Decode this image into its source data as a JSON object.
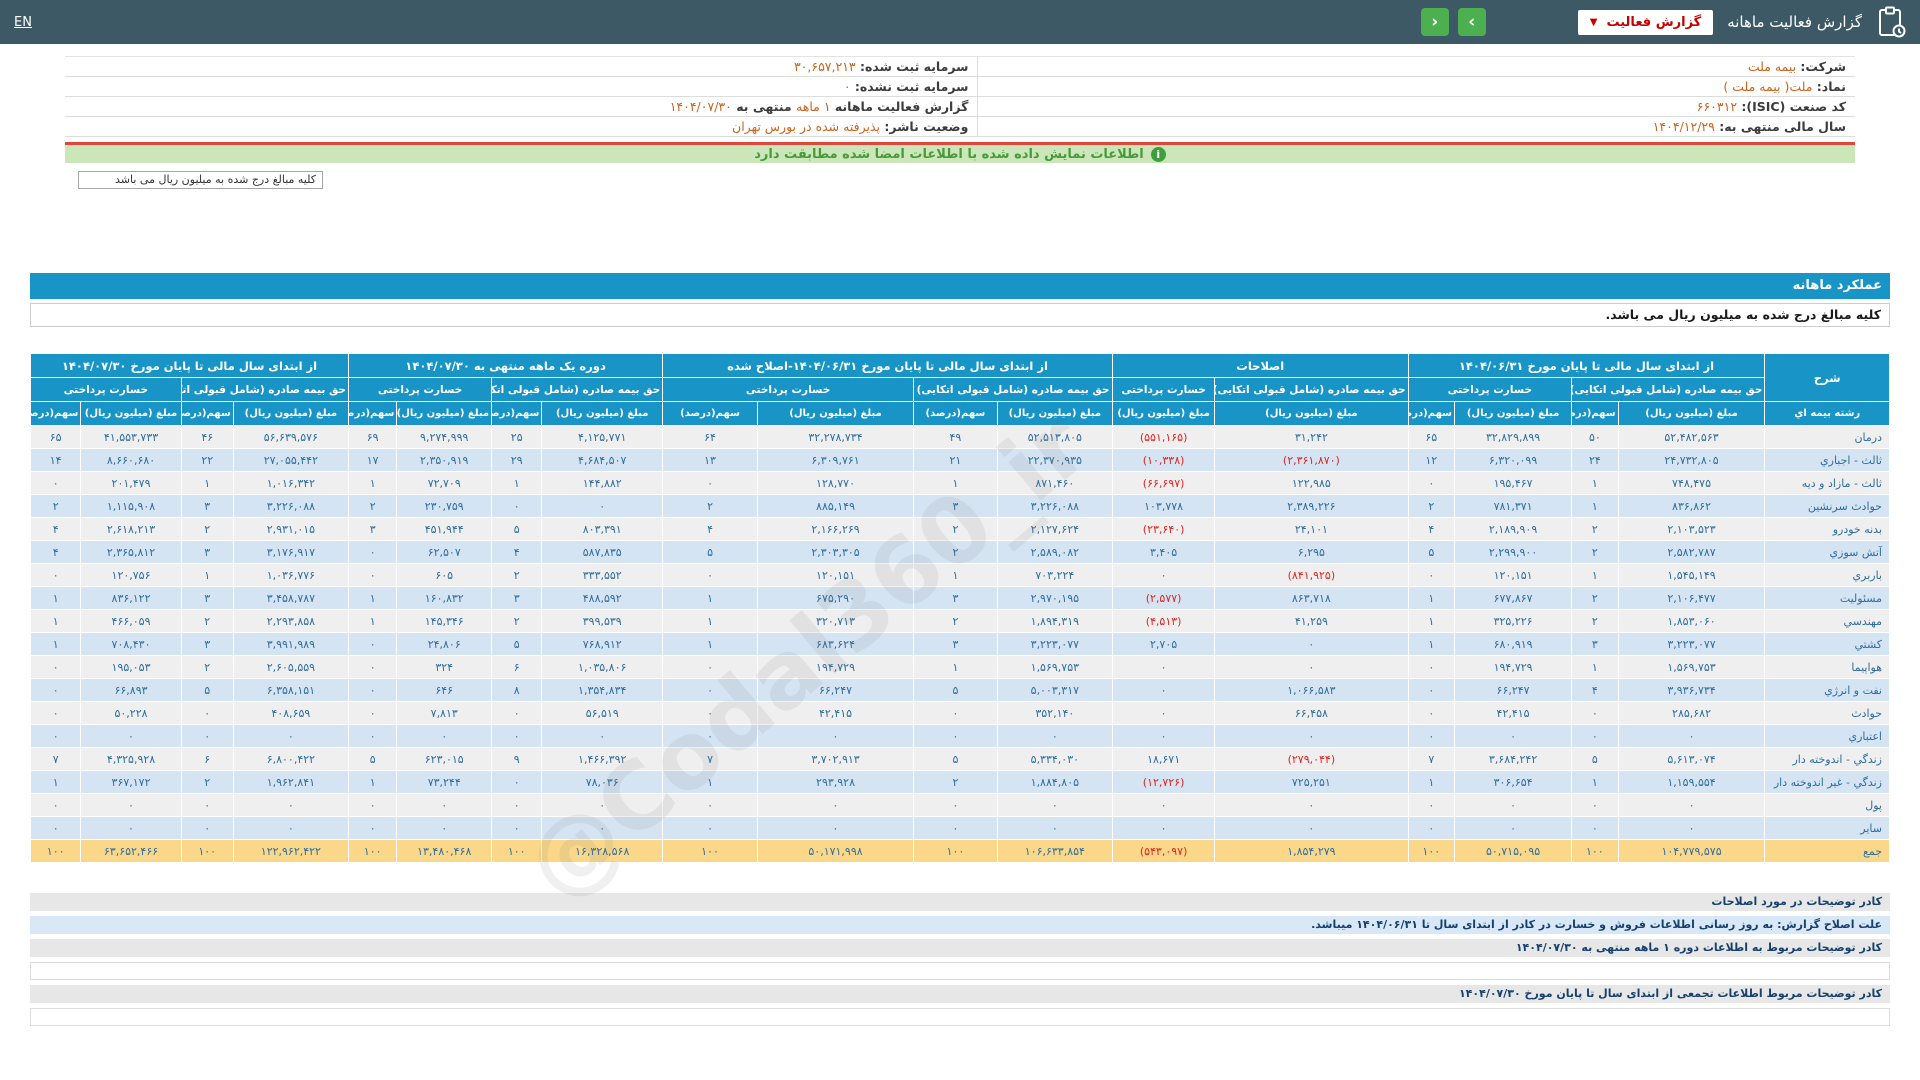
{
  "topbar": {
    "title": "گزارش فعالیت ماهانه",
    "report_type_button": "گزارش فعالیت",
    "caret": "▼",
    "nav_next": "›",
    "nav_prev": "‹",
    "lang": "EN"
  },
  "info": {
    "rows": [
      {
        "right": {
          "label": "شرکت:",
          "value": "بیمه ملت"
        },
        "left": {
          "label": "سرمایه ثبت شده:",
          "value": "۳۰,۶۵۷,۲۱۳"
        }
      },
      {
        "right": {
          "label": "نماد:",
          "value": "ملت( بیمه ملت )"
        },
        "left": {
          "label": "سرمایه ثبت نشده:",
          "value": "۰"
        }
      },
      {
        "right": {
          "label": "کد صنعت (ISIC):",
          "value": "۶۶۰۳۱۲"
        },
        "left": {
          "label": "گزارش فعالیت ماهانه",
          "value": "۱ ماهه",
          "label2": "منتهی به",
          "value2": "۱۴۰۴/۰۷/۳۰"
        }
      },
      {
        "right": {
          "label": "سال مالی منتهی به:",
          "value": "۱۴۰۴/۱۲/۲۹"
        },
        "left": {
          "label": "وضعیت ناشر:",
          "value": "پذیرفته شده در بورس تهران"
        }
      }
    ]
  },
  "green_bar": {
    "text": "اطلاعات نمایش داده شده با اطلاعات امضا شده مطابقت دارد",
    "icon": "i"
  },
  "amounts_box": "کلیه مبالغ درج شده به میلیون ریال می باشد",
  "band_title": "عملکرد ماهانه",
  "amounts_note": "کلیه مبالغ درج شده به میلیون ریال می باشد.",
  "watermark": "@Codal360_ir",
  "table": {
    "col_widths": [
      "6.7%",
      "7.9%",
      "2.5%",
      "6.3%",
      "2.5%",
      "10.4%",
      "5.5%",
      "6.2%",
      "4.5%",
      "8.4%",
      "5.1%",
      "6.5%",
      "2.7%",
      "5.1%",
      "2.6%",
      "6.2%",
      "2.8%",
      "5.4%",
      "2.7%"
    ],
    "header": [
      [
        {
          "t": "شرح",
          "cs": 1,
          "rs": 2,
          "n": "col-group-description"
        },
        {
          "t": "از ابتدای سال مالی تا پایان مورخ ۱۴۰۴/۰۶/۳۱",
          "cs": 4,
          "n": "col-group-ytd-1404-06-31"
        },
        {
          "t": "اصلاحات",
          "cs": 2,
          "n": "col-group-adjustments"
        },
        {
          "t": "از ابتدای سال مالی تا پایان مورخ ۱۴۰۴/۰۶/۳۱-اصلاح شده",
          "cs": 4,
          "n": "col-group-ytd-1404-06-31-adjusted"
        },
        {
          "t": "دوره یک ماهه منتهی به ۱۴۰۴/۰۷/۳۰",
          "cs": 4,
          "n": "col-group-one-month-1404-07-30"
        },
        {
          "t": "از ابتدای سال مالی تا پایان مورخ ۱۴۰۴/۰۷/۳۰",
          "cs": 4,
          "n": "col-group-ytd-1404-07-30"
        }
      ],
      [
        {
          "t": "حق بیمه صادره (شامل قبولی اتکایی)",
          "cs": 2,
          "n": "subcol-premium-issued"
        },
        {
          "t": "خسارت پرداختی",
          "cs": 2,
          "n": "subcol-claims-paid"
        },
        {
          "t": "حق بیمه صادره (شامل قبولی اتکایی)",
          "cs": 1,
          "n": "subcol-premium-issued"
        },
        {
          "t": "خسارت پرداختی",
          "cs": 1,
          "n": "subcol-claims-paid"
        },
        {
          "t": "حق بیمه صادره (شامل قبولی اتکایی)",
          "cs": 2,
          "n": "subcol-premium-issued"
        },
        {
          "t": "خسارت پرداختی",
          "cs": 2,
          "n": "subcol-claims-paid"
        },
        {
          "t": "حق بیمه صادره (شامل قبولی اتکایی)",
          "cs": 2,
          "n": "subcol-premium-issued"
        },
        {
          "t": "خسارت پرداختی",
          "cs": 2,
          "n": "subcol-claims-paid"
        },
        {
          "t": "حق بیمه صادره (شامل قبولی اتکایی)",
          "cs": 2,
          "n": "subcol-premium-issued"
        },
        {
          "t": "خسارت پرداختی",
          "cs": 2,
          "n": "subcol-claims-paid"
        }
      ],
      [
        {
          "t": "رشته بیمه اي",
          "cs": 1,
          "n": "col-insurance-line"
        },
        {
          "t": "مبلغ (میلیون ریال)",
          "cs": 1,
          "n": "col-amount"
        },
        {
          "t": "سهم(درصد)",
          "cs": 1,
          "n": "col-share"
        },
        {
          "t": "مبلغ (میلیون ریال)",
          "cs": 1,
          "n": "col-amount"
        },
        {
          "t": "سهم(درصد)",
          "cs": 1,
          "n": "col-share"
        },
        {
          "t": "مبلغ (میلیون ریال)",
          "cs": 1,
          "n": "col-amount"
        },
        {
          "t": "مبلغ (میلیون ریال)",
          "cs": 1,
          "n": "col-amount"
        },
        {
          "t": "مبلغ (میلیون ریال)",
          "cs": 1,
          "n": "col-amount"
        },
        {
          "t": "سهم(درصد)",
          "cs": 1,
          "n": "col-share"
        },
        {
          "t": "مبلغ (میلیون ریال)",
          "cs": 1,
          "n": "col-amount"
        },
        {
          "t": "سهم(درصد)",
          "cs": 1,
          "n": "col-share"
        },
        {
          "t": "مبلغ (میلیون ریال)",
          "cs": 1,
          "n": "col-amount"
        },
        {
          "t": "سهم(درصد)",
          "cs": 1,
          "n": "col-share"
        },
        {
          "t": "مبلغ (میلیون ریال)",
          "cs": 1,
          "n": "col-amount"
        },
        {
          "t": "سهم(درصد)",
          "cs": 1,
          "n": "col-share"
        },
        {
          "t": "مبلغ (میلیون ریال)",
          "cs": 1,
          "n": "col-amount"
        },
        {
          "t": "سهم(درصد)",
          "cs": 1,
          "n": "col-share"
        },
        {
          "t": "مبلغ (میلیون ریال)",
          "cs": 1,
          "n": "col-amount"
        },
        {
          "t": "سهم(درصد)",
          "cs": 1,
          "n": "col-share"
        }
      ]
    ],
    "rows": [
      {
        "label": "درمان",
        "cells": [
          "۵۲,۴۸۲,۵۶۳",
          "۵۰",
          "۳۲,۸۲۹,۸۹۹",
          "۶۵",
          "۳۱,۲۴۲",
          "(۵۵۱,۱۶۵)",
          "۵۲,۵۱۳,۸۰۵",
          "۴۹",
          "۳۲,۲۷۸,۷۳۴",
          "۶۴",
          "۴,۱۲۵,۷۷۱",
          "۲۵",
          "۹,۲۷۴,۹۹۹",
          "۶۹",
          "۵۶,۶۳۹,۵۷۶",
          "۴۶",
          "۴۱,۵۵۳,۷۳۳",
          "۶۵"
        ]
      },
      {
        "label": "ثالث - اجباري",
        "cells": [
          "۲۴,۷۳۲,۸۰۵",
          "۲۴",
          "۶,۳۲۰,۰۹۹",
          "۱۲",
          "(۲,۳۶۱,۸۷۰)",
          "(۱۰,۳۳۸)",
          "۲۲,۳۷۰,۹۳۵",
          "۲۱",
          "۶,۳۰۹,۷۶۱",
          "۱۳",
          "۴,۶۸۴,۵۰۷",
          "۲۹",
          "۲,۳۵۰,۹۱۹",
          "۱۷",
          "۲۷,۰۵۵,۴۴۲",
          "۲۲",
          "۸,۶۶۰,۶۸۰",
          "۱۴"
        ]
      },
      {
        "label": "ثالث - مازاد و دیه",
        "cells": [
          "۷۴۸,۴۷۵",
          "۱",
          "۱۹۵,۴۶۷",
          "۰",
          "۱۲۲,۹۸۵",
          "(۶۶,۶۹۷)",
          "۸۷۱,۴۶۰",
          "۱",
          "۱۲۸,۷۷۰",
          "۰",
          "۱۴۴,۸۸۲",
          "۱",
          "۷۲,۷۰۹",
          "۱",
          "۱,۰۱۶,۳۴۲",
          "۱",
          "۲۰۱,۴۷۹",
          "۰"
        ]
      },
      {
        "label": "حوادث سرنشین",
        "cells": [
          "۸۳۶,۸۶۲",
          "۱",
          "۷۸۱,۳۷۱",
          "۲",
          "۲,۳۸۹,۲۲۶",
          "۱۰۳,۷۷۸",
          "۳,۲۲۶,۰۸۸",
          "۳",
          "۸۸۵,۱۴۹",
          "۲",
          "۰",
          "۰",
          "۲۳۰,۷۵۹",
          "۲",
          "۳,۲۲۶,۰۸۸",
          "۳",
          "۱,۱۱۵,۹۰۸",
          "۲"
        ]
      },
      {
        "label": "بدنه خودرو",
        "cells": [
          "۲,۱۰۳,۵۲۳",
          "۲",
          "۲,۱۸۹,۹۰۹",
          "۴",
          "۲۴,۱۰۱",
          "(۲۳,۶۴۰)",
          "۲,۱۲۷,۶۲۴",
          "۲",
          "۲,۱۶۶,۲۶۹",
          "۴",
          "۸۰۳,۳۹۱",
          "۵",
          "۴۵۱,۹۴۴",
          "۳",
          "۲,۹۳۱,۰۱۵",
          "۲",
          "۲,۶۱۸,۲۱۳",
          "۴"
        ]
      },
      {
        "label": "آتش سوزي",
        "cells": [
          "۲,۵۸۲,۷۸۷",
          "۲",
          "۲,۲۹۹,۹۰۰",
          "۵",
          "۶,۲۹۵",
          "۳,۴۰۵",
          "۲,۵۸۹,۰۸۲",
          "۲",
          "۲,۳۰۳,۳۰۵",
          "۵",
          "۵۸۷,۸۳۵",
          "۴",
          "۶۲,۵۰۷",
          "۰",
          "۳,۱۷۶,۹۱۷",
          "۳",
          "۲,۳۶۵,۸۱۲",
          "۴"
        ]
      },
      {
        "label": "باربري",
        "cells": [
          "۱,۵۴۵,۱۴۹",
          "۱",
          "۱۲۰,۱۵۱",
          "۰",
          "(۸۴۱,۹۲۵)",
          "۰",
          "۷۰۳,۲۲۴",
          "۱",
          "۱۲۰,۱۵۱",
          "۰",
          "۳۳۳,۵۵۲",
          "۲",
          "۶۰۵",
          "۰",
          "۱,۰۳۶,۷۷۶",
          "۱",
          "۱۲۰,۷۵۶",
          "۰"
        ]
      },
      {
        "label": "مسئولیت",
        "cells": [
          "۲,۱۰۶,۴۷۷",
          "۲",
          "۶۷۷,۸۶۷",
          "۱",
          "۸۶۳,۷۱۸",
          "(۲,۵۷۷)",
          "۲,۹۷۰,۱۹۵",
          "۳",
          "۶۷۵,۲۹۰",
          "۱",
          "۴۸۸,۵۹۲",
          "۳",
          "۱۶۰,۸۳۲",
          "۱",
          "۳,۴۵۸,۷۸۷",
          "۳",
          "۸۳۶,۱۲۲",
          "۱"
        ]
      },
      {
        "label": "مهندسي",
        "cells": [
          "۱,۸۵۳,۰۶۰",
          "۲",
          "۳۲۵,۲۲۶",
          "۱",
          "۴۱,۲۵۹",
          "(۴,۵۱۳)",
          "۱,۸۹۴,۳۱۹",
          "۲",
          "۳۲۰,۷۱۳",
          "۱",
          "۳۹۹,۵۳۹",
          "۲",
          "۱۴۵,۳۴۶",
          "۱",
          "۲,۲۹۳,۸۵۸",
          "۲",
          "۴۶۶,۰۵۹",
          "۱"
        ]
      },
      {
        "label": "کشتي",
        "cells": [
          "۳,۲۲۳,۰۷۷",
          "۳",
          "۶۸۰,۹۱۹",
          "۱",
          "۰",
          "۲,۷۰۵",
          "۳,۲۲۳,۰۷۷",
          "۳",
          "۶۸۳,۶۲۴",
          "۱",
          "۷۶۸,۹۱۲",
          "۵",
          "۲۴,۸۰۶",
          "۰",
          "۳,۹۹۱,۹۸۹",
          "۳",
          "۷۰۸,۴۳۰",
          "۱"
        ]
      },
      {
        "label": "هواپیما",
        "cells": [
          "۱,۵۶۹,۷۵۳",
          "۱",
          "۱۹۴,۷۲۹",
          "۰",
          "۰",
          "۰",
          "۱,۵۶۹,۷۵۳",
          "۱",
          "۱۹۴,۷۲۹",
          "۰",
          "۱,۰۳۵,۸۰۶",
          "۶",
          "۳۲۴",
          "۰",
          "۲,۶۰۵,۵۵۹",
          "۲",
          "۱۹۵,۰۵۳",
          "۰"
        ]
      },
      {
        "label": "نفت و انرژي",
        "cells": [
          "۳,۹۳۶,۷۳۴",
          "۴",
          "۶۶,۲۴۷",
          "۰",
          "۱,۰۶۶,۵۸۳",
          "۰",
          "۵,۰۰۳,۳۱۷",
          "۵",
          "۶۶,۲۴۷",
          "۰",
          "۱,۳۵۴,۸۳۴",
          "۸",
          "۶۴۶",
          "۰",
          "۶,۳۵۸,۱۵۱",
          "۵",
          "۶۶,۸۹۳",
          "۰"
        ]
      },
      {
        "label": "حوادث",
        "cells": [
          "۲۸۵,۶۸۲",
          "۰",
          "۴۲,۴۱۵",
          "۰",
          "۶۶,۴۵۸",
          "۰",
          "۳۵۲,۱۴۰",
          "۰",
          "۴۲,۴۱۵",
          "۰",
          "۵۶,۵۱۹",
          "۰",
          "۷,۸۱۳",
          "۰",
          "۴۰۸,۶۵۹",
          "۰",
          "۵۰,۲۲۸",
          "۰"
        ]
      },
      {
        "label": "اعتباري",
        "cells": [
          "۰",
          "۰",
          "۰",
          "۰",
          "۰",
          "۰",
          "۰",
          "۰",
          "۰",
          "۰",
          "۰",
          "۰",
          "۰",
          "۰",
          "۰",
          "۰",
          "۰",
          "۰"
        ]
      },
      {
        "label": "زندگي - اندوخته دار",
        "cells": [
          "۵,۶۱۳,۰۷۴",
          "۵",
          "۳,۶۸۴,۲۴۲",
          "۷",
          "(۲۷۹,۰۴۴)",
          "۱۸,۶۷۱",
          "۵,۳۳۴,۰۳۰",
          "۵",
          "۳,۷۰۲,۹۱۳",
          "۷",
          "۱,۴۶۶,۳۹۲",
          "۹",
          "۶۲۳,۰۱۵",
          "۵",
          "۶,۸۰۰,۴۲۲",
          "۶",
          "۴,۳۲۵,۹۲۸",
          "۷"
        ]
      },
      {
        "label": "زندگي - غیر اندوخته دار",
        "cells": [
          "۱,۱۵۹,۵۵۴",
          "۱",
          "۳۰۶,۶۵۴",
          "۱",
          "۷۲۵,۲۵۱",
          "(۱۲,۷۲۶)",
          "۱,۸۸۴,۸۰۵",
          "۲",
          "۲۹۳,۹۲۸",
          "۱",
          "۷۸,۰۳۶",
          "۰",
          "۷۳,۲۴۴",
          "۱",
          "۱,۹۶۲,۸۴۱",
          "۲",
          "۳۶۷,۱۷۲",
          "۱"
        ]
      },
      {
        "label": "پول",
        "cells": [
          "۰",
          "۰",
          "۰",
          "۰",
          "۰",
          "۰",
          "۰",
          "۰",
          "۰",
          "۰",
          "۰",
          "۰",
          "۰",
          "۰",
          "۰",
          "۰",
          "۰",
          "۰"
        ]
      },
      {
        "label": "سایر",
        "cells": [
          "۰",
          "۰",
          "۰",
          "۰",
          "۰",
          "۰",
          "۰",
          "۰",
          "۰",
          "۰",
          "۰",
          "۰",
          "۰",
          "۰",
          "۰",
          "۰",
          "۰",
          "۰"
        ]
      },
      {
        "label": "جمع",
        "total": true,
        "cells": [
          "۱۰۴,۷۷۹,۵۷۵",
          "۱۰۰",
          "۵۰,۷۱۵,۰۹۵",
          "۱۰۰",
          "۱,۸۵۴,۲۷۹",
          "(۵۴۳,۰۹۷)",
          "۱۰۶,۶۳۳,۸۵۴",
          "۱۰۰",
          "۵۰,۱۷۱,۹۹۸",
          "۱۰۰",
          "۱۶,۳۲۸,۵۶۸",
          "۱۰۰",
          "۱۳,۴۸۰,۴۶۸",
          "۱۰۰",
          "۱۲۲,۹۶۲,۴۲۲",
          "۱۰۰",
          "۶۳,۶۵۲,۴۶۶",
          "۱۰۰"
        ]
      }
    ]
  },
  "footer": {
    "bars": [
      {
        "type": "gray",
        "text": "کادر توضیحات در مورد اصلاحات"
      },
      {
        "type": "blue",
        "text": "علت اصلاح گزارش: به روز رسانی اطلاعات فروش و خسارت در کادر از ابتدای سال تا ۱۴۰۴/۰۶/۳۱ میباشد."
      },
      {
        "type": "gray",
        "text": "کادر توضیحات مربوط به اطلاعات دوره ۱ ماهه منتهی به ۱۴۰۴/۰۷/۳۰"
      },
      {
        "type": "white",
        "text": ""
      },
      {
        "type": "gray",
        "text": "کادر توضیحات مربوط اطلاعات تجمعی از ابتدای سال تا پایان مورخ ۱۴۰۴/۰۷/۳۰"
      },
      {
        "type": "white",
        "text": ""
      }
    ]
  },
  "colors": {
    "topbar_bg": "#3d5966",
    "accent_cyan": "#1895c6",
    "button_green": "#4caf50",
    "button_text_red": "#c40000",
    "negative_red": "#e02520",
    "value_orange": "#c9641f",
    "total_row_yellow": "#fbd889",
    "row_alt_blue": "#d5e4f2",
    "row_alt_gray": "#efefef",
    "green_bar_bg": "#cbe7ba",
    "green_bar_border_red": "#e0473a",
    "number_blue": "#2f6d9e"
  }
}
